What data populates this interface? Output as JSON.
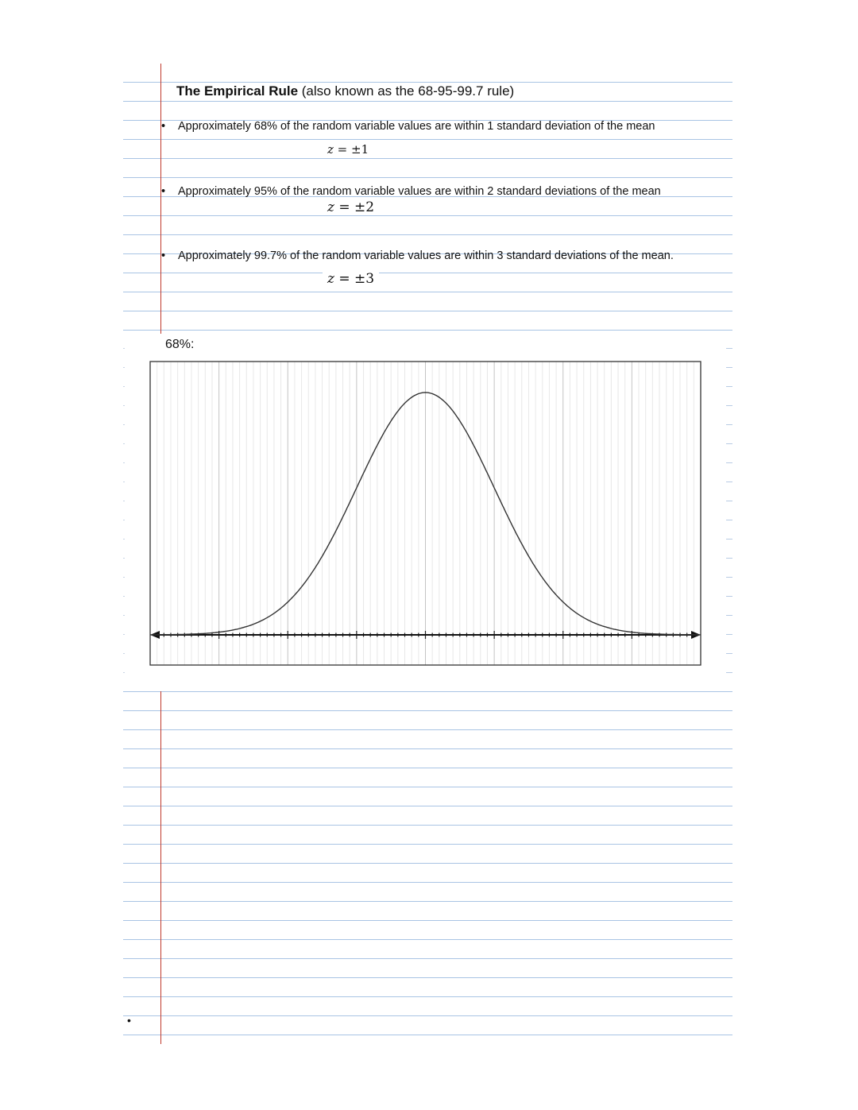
{
  "heading": {
    "bold": "The Empirical Rule",
    "rest": " (also known as the 68-95-99.7 rule)"
  },
  "bullets": [
    {
      "marker": "•",
      "text": "Approximately 68% of the random variable values are within 1 standard deviation of the mean",
      "formula_var": "z",
      "formula_rest": " = ±1"
    },
    {
      "marker": "•",
      "text": "Approximately 95% of the random variable values are within 2 standard deviations of the mean",
      "formula_var": "z",
      "formula_rest": " = ±2"
    },
    {
      "marker": "•",
      "text": "Approximately 99.7% of the random variable values are within 3 standard deviations of the mean.",
      "formula_var": "z",
      "formula_rest": " = ±3"
    }
  ],
  "graph": {
    "label": "68%:",
    "curve": "standard normal",
    "x_range": [
      -4,
      4
    ],
    "major_gridlines_every": 1,
    "minor_gridlines_per_major": 10,
    "axis_arrows": "both ends"
  },
  "footer_bullet": "•",
  "colors": {
    "rule_line": "#a9c4e4",
    "margin_line": "#c0392b",
    "curve": "#333333"
  }
}
